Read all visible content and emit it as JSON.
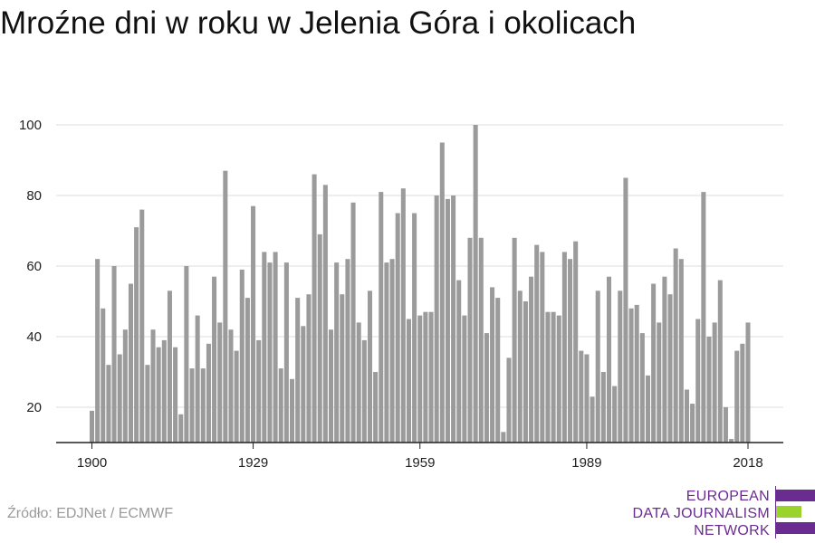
{
  "title": "Mroźne dni w roku w Jelenia Góra i okolicach",
  "source": "Źródło: EDJNet / ECMWF",
  "logo": {
    "line1": "EUROPEAN",
    "line2": "DATA JOURNALISM",
    "line3": "NETWORK",
    "colors": {
      "purple": "#6b2c91",
      "green": "#9bd32d"
    }
  },
  "colors": {
    "bar": "#9b9b9b",
    "grid": "#dcdcdc",
    "axis": "#222222",
    "text": "#222222"
  },
  "chart_data": {
    "type": "bar",
    "title": "Mroźne dni w roku w Jelenia Góra i okolicach",
    "xlabel": "",
    "ylabel": "",
    "ylim": [
      10,
      100
    ],
    "yticks": [
      20,
      40,
      60,
      80,
      100
    ],
    "xticks": [
      1900,
      1929,
      1959,
      1989,
      2018
    ],
    "grid": true,
    "x": [
      1900,
      1901,
      1902,
      1903,
      1904,
      1905,
      1906,
      1907,
      1908,
      1909,
      1910,
      1911,
      1912,
      1913,
      1914,
      1915,
      1916,
      1917,
      1918,
      1919,
      1920,
      1921,
      1922,
      1923,
      1924,
      1925,
      1926,
      1927,
      1928,
      1929,
      1930,
      1931,
      1932,
      1933,
      1934,
      1935,
      1936,
      1937,
      1938,
      1939,
      1940,
      1941,
      1942,
      1943,
      1944,
      1945,
      1946,
      1947,
      1948,
      1949,
      1950,
      1951,
      1952,
      1953,
      1954,
      1955,
      1956,
      1957,
      1958,
      1959,
      1960,
      1961,
      1962,
      1963,
      1964,
      1965,
      1966,
      1967,
      1968,
      1969,
      1970,
      1971,
      1972,
      1973,
      1974,
      1975,
      1976,
      1977,
      1978,
      1979,
      1980,
      1981,
      1982,
      1983,
      1984,
      1985,
      1986,
      1987,
      1988,
      1989,
      1990,
      1991,
      1992,
      1993,
      1994,
      1995,
      1996,
      1997,
      1998,
      1999,
      2000,
      2001,
      2002,
      2003,
      2004,
      2005,
      2006,
      2007,
      2008,
      2009,
      2010,
      2011,
      2012,
      2013,
      2014,
      2015,
      2016,
      2017,
      2018
    ],
    "values": [
      19,
      62,
      48,
      32,
      60,
      35,
      42,
      55,
      71,
      76,
      32,
      42,
      37,
      39,
      53,
      37,
      18,
      60,
      31,
      46,
      31,
      38,
      57,
      44,
      87,
      42,
      36,
      59,
      51,
      77,
      39,
      64,
      61,
      64,
      31,
      61,
      28,
      51,
      43,
      52,
      86,
      69,
      83,
      42,
      61,
      52,
      62,
      78,
      44,
      39,
      53,
      30,
      81,
      61,
      62,
      75,
      82,
      45,
      75,
      46,
      47,
      47,
      80,
      95,
      79,
      80,
      56,
      46,
      68,
      100,
      68,
      41,
      54,
      51,
      13,
      34,
      68,
      53,
      50,
      57,
      66,
      64,
      47,
      47,
      46,
      64,
      62,
      67,
      36,
      35,
      23,
      53,
      30,
      57,
      26,
      53,
      85,
      48,
      49,
      41,
      29,
      55,
      44,
      57,
      52,
      65,
      62,
      25,
      21,
      45,
      81,
      40,
      44,
      56,
      20,
      11,
      36,
      38,
      44
    ]
  }
}
